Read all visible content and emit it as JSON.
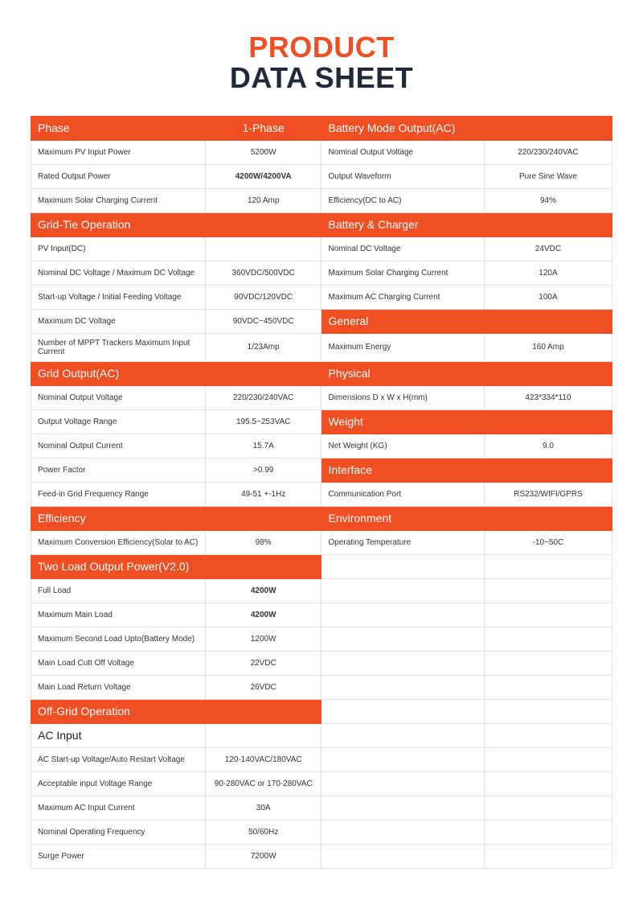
{
  "title": {
    "line1": "PRODUCT",
    "line2": "DATA SHEET",
    "color1": "#f04e23",
    "color2": "#21293b"
  },
  "colors": {
    "orange": "#f04e23",
    "border": "#e0e0e0",
    "text": "#333333",
    "white": "#ffffff"
  },
  "rows": [
    {
      "type": "hdr",
      "c1": "Phase",
      "c2": "1-Phase",
      "c3": "Battery Mode Output(AC)",
      "c4": ""
    },
    {
      "type": "data",
      "c1": "Maximum PV Input Power",
      "c2": "5200W",
      "c3": "Nominal Output Voltage",
      "c4": "220/230/240VAC"
    },
    {
      "type": "data",
      "c1": "Rated Output Power",
      "c2": "4200W/4200VA",
      "c2bold": true,
      "c3": "Output Waveform",
      "c4": "Pure Sine Wave"
    },
    {
      "type": "data",
      "c1": "Maximum Solar Charging Current",
      "c2": "120 Amp",
      "c3": "Efficiency(DC to AC)",
      "c4": "94%"
    },
    {
      "type": "hdr",
      "c1": "Grid-Tie Operation",
      "c2": "",
      "c3": "Battery & Charger",
      "c4": ""
    },
    {
      "type": "data",
      "c1": "PV Input(DC)",
      "c2": "",
      "c3": "Nominal DC Voltage",
      "c4": "24VDC"
    },
    {
      "type": "data",
      "c1": "Nominal DC Voltage / Maximum DC Voltage",
      "c2": "360VDC/500VDC",
      "c3": "Maximum Solar Charging Current",
      "c4": "120A"
    },
    {
      "type": "data",
      "c1": "Start-up Voltage / Initial Feeding Voltage",
      "c2": "90VDC/120VDC",
      "c3": "Maximum AC Charging Current",
      "c4": "100A"
    },
    {
      "type": "rhdr",
      "c1": "Maximum DC Voltage",
      "c2": "90VDC~450VDC",
      "c3": "General",
      "c4": ""
    },
    {
      "type": "data",
      "c1": "Number of MPPT Trackers Maximum Input Current",
      "c2": "1/23Amp",
      "c3": "Maximum Energy",
      "c4": "160 Amp"
    },
    {
      "type": "hdr",
      "c1": "Grid Output(AC)",
      "c2": "",
      "c3": "Physical",
      "c4": ""
    },
    {
      "type": "data",
      "c1": "Nominal Output Voltage",
      "c2": "220/230/240VAC",
      "c3": "Dimensions D x W x H(mm)",
      "c4": "423*334*110"
    },
    {
      "type": "rhdr",
      "c1": "Output Voltage Range",
      "c2": "195.5~253VAC",
      "c3": "Weight",
      "c4": ""
    },
    {
      "type": "data",
      "c1": "Nominal Output Current",
      "c2": "15.7A",
      "c3": "Net Weight (KG)",
      "c4": "9.0"
    },
    {
      "type": "rhdr",
      "c1": "Power Factor",
      "c2": ">0.99",
      "c3": "Interface",
      "c4": ""
    },
    {
      "type": "data",
      "c1": "Feed-in Grid Frequency Range",
      "c2": "49-51 +-1Hz",
      "c3": "Communication Port",
      "c4": "RS232/WIFI/GPRS"
    },
    {
      "type": "hdr",
      "c1": "Efficiency",
      "c2": "",
      "c3": "Environment",
      "c4": ""
    },
    {
      "type": "data",
      "c1": "Maximum Conversion Efficiency(Solar to AC)",
      "c2": "98%",
      "c3": "Operating Temperature",
      "c4": "-10~50C"
    },
    {
      "type": "lhdr",
      "c1": "Two Load Output Power(V2.0)",
      "c2": "",
      "c3": "",
      "c4": ""
    },
    {
      "type": "data",
      "c1": "Full Load",
      "c2": "4200W",
      "c2bold": true,
      "c3": "",
      "c4": ""
    },
    {
      "type": "data",
      "c1": "Maximum Main Load",
      "c2": "4200W",
      "c2bold": true,
      "c3": "",
      "c4": ""
    },
    {
      "type": "data",
      "c1": "Maximum Second Load Upto(Battery Mode)",
      "c2": "1200W",
      "c3": "",
      "c4": ""
    },
    {
      "type": "data",
      "c1": "Main Load Cutt Off Voltage",
      "c2": "22VDC",
      "c3": "",
      "c4": ""
    },
    {
      "type": "data",
      "c1": "Main Load Return Voltage",
      "c2": "26VDC",
      "c3": "",
      "c4": ""
    },
    {
      "type": "lhdr",
      "c1": "Off-Grid Operation",
      "c2": "",
      "c3": "",
      "c4": ""
    },
    {
      "type": "sub",
      "c1": "AC Input",
      "c2": "",
      "c3": "",
      "c4": ""
    },
    {
      "type": "data",
      "c1": "AC Start-up Voltage/Auto Restart Voltage",
      "c2": "120-140VAC/180VAC",
      "c3": "",
      "c4": ""
    },
    {
      "type": "data",
      "c1": "Acceptable input Voltage Range",
      "c2": "90-280VAC or 170-280VAC",
      "c3": "",
      "c4": ""
    },
    {
      "type": "data",
      "c1": "Maximum AC Input Current",
      "c2": "30A",
      "c3": "",
      "c4": ""
    },
    {
      "type": "data",
      "c1": "Nominal Operating Frequency",
      "c2": "50/60Hz",
      "c3": "",
      "c4": ""
    },
    {
      "type": "data",
      "c1": "Surge Power",
      "c2": "7200W",
      "c3": "",
      "c4": ""
    }
  ]
}
